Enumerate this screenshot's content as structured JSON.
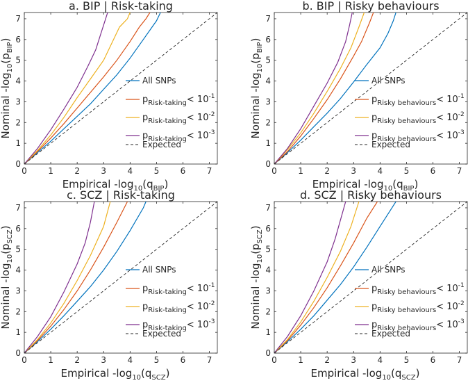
{
  "figure": {
    "series_colors": {
      "all": "#0072BD",
      "p1": "#D95319",
      "p2": "#EDB120",
      "p3": "#7E2F8E",
      "expected": "#262626"
    },
    "all_label": "All SNPs",
    "expected_label": "Expected",
    "thresholds": [
      "< 10",
      "< 10",
      "< 10"
    ],
    "threshold_exponents": [
      "-1",
      "-2",
      "-3"
    ],
    "x_prefix": "Empirical -log",
    "y_prefix": "Nominal -log",
    "log_base": "10",
    "x_ticks": [
      "0",
      "1",
      "2",
      "3",
      "4",
      "5",
      "6",
      "7"
    ],
    "y_ticks": [
      "0",
      "1",
      "2",
      "3",
      "4",
      "5",
      "6",
      "7"
    ]
  },
  "chart_data": [
    {
      "type": "line",
      "title": "a. BIP | Risk-taking",
      "xlabel_sub": "BIP",
      "ylabel_sub": "BIP",
      "xlim": [
        0,
        7.3
      ],
      "ylim": [
        0,
        7.3
      ],
      "legend_sub": "Risk-taking",
      "legend_placement": "bottom-right",
      "series": [
        {
          "name": "All SNPs",
          "key": "all",
          "x": [
            0,
            0.5,
            1,
            1.5,
            2,
            2.5,
            3,
            3.5,
            4,
            4.5,
            5,
            5.15
          ],
          "y": [
            0,
            0.55,
            1.1,
            1.7,
            2.3,
            2.9,
            3.6,
            4.3,
            5.1,
            6.0,
            6.9,
            7.3
          ]
        },
        {
          "name": "p1",
          "key": "p1",
          "x": [
            0,
            0.5,
            1,
            1.5,
            2,
            2.5,
            3,
            3.5,
            4,
            4.35,
            4.6,
            4.75
          ],
          "y": [
            0,
            0.6,
            1.25,
            1.95,
            2.7,
            3.45,
            4.2,
            5.0,
            5.9,
            6.6,
            7.0,
            7.3
          ]
        },
        {
          "name": "p2",
          "key": "p2",
          "x": [
            0,
            0.5,
            1,
            1.5,
            2,
            2.5,
            3,
            3.3,
            3.6,
            3.9,
            4.0
          ],
          "y": [
            0,
            0.65,
            1.4,
            2.25,
            3.2,
            4.1,
            5.0,
            5.8,
            6.6,
            7.0,
            7.3
          ]
        },
        {
          "name": "p3",
          "key": "p3",
          "x": [
            0,
            0.5,
            1,
            1.5,
            2,
            2.4,
            2.7,
            2.9,
            3.05,
            3.15
          ],
          "y": [
            0,
            0.75,
            1.65,
            2.65,
            3.7,
            4.7,
            5.5,
            6.3,
            6.9,
            7.3
          ]
        },
        {
          "name": "Expected",
          "key": "expected",
          "x": [
            0,
            7.3
          ],
          "y": [
            0,
            7.3
          ]
        }
      ]
    },
    {
      "type": "line",
      "title": "b. BIP | Risky behaviours",
      "xlabel_sub": "BIP",
      "ylabel_sub": "BIP",
      "xlim": [
        0,
        7.3
      ],
      "ylim": [
        0,
        7.3
      ],
      "legend_sub": "Risky behaviours",
      "legend_placement": "bottom-right",
      "series": [
        {
          "name": "All SNPs",
          "key": "all",
          "x": [
            0,
            0.5,
            1,
            1.5,
            2,
            2.5,
            3,
            3.5,
            4,
            4.3,
            4.5,
            4.6
          ],
          "y": [
            0,
            0.55,
            1.15,
            1.8,
            2.45,
            3.15,
            3.95,
            4.8,
            5.6,
            6.3,
            6.9,
            7.3
          ]
        },
        {
          "name": "p1",
          "key": "p1",
          "x": [
            0,
            0.5,
            1,
            1.5,
            2,
            2.5,
            3,
            3.3,
            3.6,
            3.75
          ],
          "y": [
            0,
            0.6,
            1.35,
            2.2,
            3.1,
            4.1,
            5.2,
            5.9,
            6.8,
            7.3
          ]
        },
        {
          "name": "p2",
          "key": "p2",
          "x": [
            0,
            0.5,
            1,
            1.5,
            2,
            2.5,
            2.9,
            3.2,
            3.4
          ],
          "y": [
            0,
            0.7,
            1.5,
            2.45,
            3.5,
            4.6,
            5.6,
            6.6,
            7.3
          ]
        },
        {
          "name": "p3",
          "key": "p3",
          "x": [
            0,
            0.5,
            1,
            1.5,
            2,
            2.4,
            2.7,
            2.85,
            2.95
          ],
          "y": [
            0,
            0.75,
            1.7,
            2.8,
            3.9,
            4.9,
            5.9,
            6.7,
            7.3
          ]
        },
        {
          "name": "Expected",
          "key": "expected",
          "x": [
            0,
            7.3
          ],
          "y": [
            0,
            7.3
          ]
        }
      ]
    },
    {
      "type": "line",
      "title": "c. SCZ | Risk-taking",
      "xlabel_sub": "SCZ",
      "ylabel_sub": "SCZ",
      "xlim": [
        0,
        7.3
      ],
      "ylim": [
        0,
        7.3
      ],
      "legend_sub": "Risk-taking",
      "legend_placement": "bottom-right",
      "series": [
        {
          "name": "All SNPs",
          "key": "all",
          "x": [
            0,
            0.5,
            1,
            1.5,
            2,
            2.5,
            3,
            3.5,
            4,
            4.5,
            4.6
          ],
          "y": [
            0,
            0.55,
            1.15,
            1.8,
            2.5,
            3.2,
            4.0,
            4.9,
            5.9,
            7.0,
            7.3
          ]
        },
        {
          "name": "p1",
          "key": "p1",
          "x": [
            0,
            0.5,
            1,
            1.5,
            2,
            2.5,
            3,
            3.5,
            3.9
          ],
          "y": [
            0,
            0.6,
            1.3,
            2.1,
            3.0,
            4.0,
            5.1,
            6.3,
            7.3
          ]
        },
        {
          "name": "p2",
          "key": "p2",
          "x": [
            0,
            0.5,
            1,
            1.5,
            2,
            2.5,
            3,
            3.25
          ],
          "y": [
            0,
            0.65,
            1.45,
            2.4,
            3.5,
            4.7,
            6.1,
            7.3
          ]
        },
        {
          "name": "p3",
          "key": "p3",
          "x": [
            0,
            0.5,
            1,
            1.5,
            2,
            2.3,
            2.5,
            2.65
          ],
          "y": [
            0,
            0.8,
            1.75,
            2.95,
            4.3,
            5.3,
            6.3,
            7.3
          ]
        },
        {
          "name": "Expected",
          "key": "expected",
          "x": [
            0,
            7.3
          ],
          "y": [
            0,
            7.3
          ]
        }
      ]
    },
    {
      "type": "line",
      "title": "d. SCZ | Risky behaviours",
      "xlabel_sub": "SCZ",
      "ylabel_sub": "SCZ",
      "xlim": [
        0,
        7.3
      ],
      "ylim": [
        0,
        7.3
      ],
      "legend_sub": "Risky behaviours",
      "legend_placement": "bottom-right",
      "series": [
        {
          "name": "All SNPs",
          "key": "all",
          "x": [
            0,
            0.5,
            1,
            1.5,
            2,
            2.5,
            3,
            3.5,
            4,
            4.4,
            4.6
          ],
          "y": [
            0,
            0.55,
            1.15,
            1.8,
            2.55,
            3.3,
            4.15,
            5.1,
            6.1,
            6.9,
            7.3
          ]
        },
        {
          "name": "p1",
          "key": "p1",
          "x": [
            0,
            0.5,
            1,
            1.5,
            2,
            2.5,
            3,
            3.5,
            3.9
          ],
          "y": [
            0,
            0.6,
            1.35,
            2.2,
            3.15,
            4.2,
            5.3,
            6.5,
            7.3
          ]
        },
        {
          "name": "p2",
          "key": "p2",
          "x": [
            0,
            0.5,
            1,
            1.5,
            2,
            2.5,
            2.9,
            3.2
          ],
          "y": [
            0,
            0.65,
            1.5,
            2.5,
            3.65,
            4.9,
            6.1,
            7.3
          ]
        },
        {
          "name": "p3",
          "key": "p3",
          "x": [
            0,
            0.5,
            1,
            1.5,
            2,
            2.3,
            2.5,
            2.7
          ],
          "y": [
            0,
            0.8,
            1.8,
            3.0,
            4.4,
            5.5,
            6.4,
            7.3
          ]
        },
        {
          "name": "Expected",
          "key": "expected",
          "x": [
            0,
            7.3
          ],
          "y": [
            0,
            7.3
          ]
        }
      ]
    }
  ]
}
